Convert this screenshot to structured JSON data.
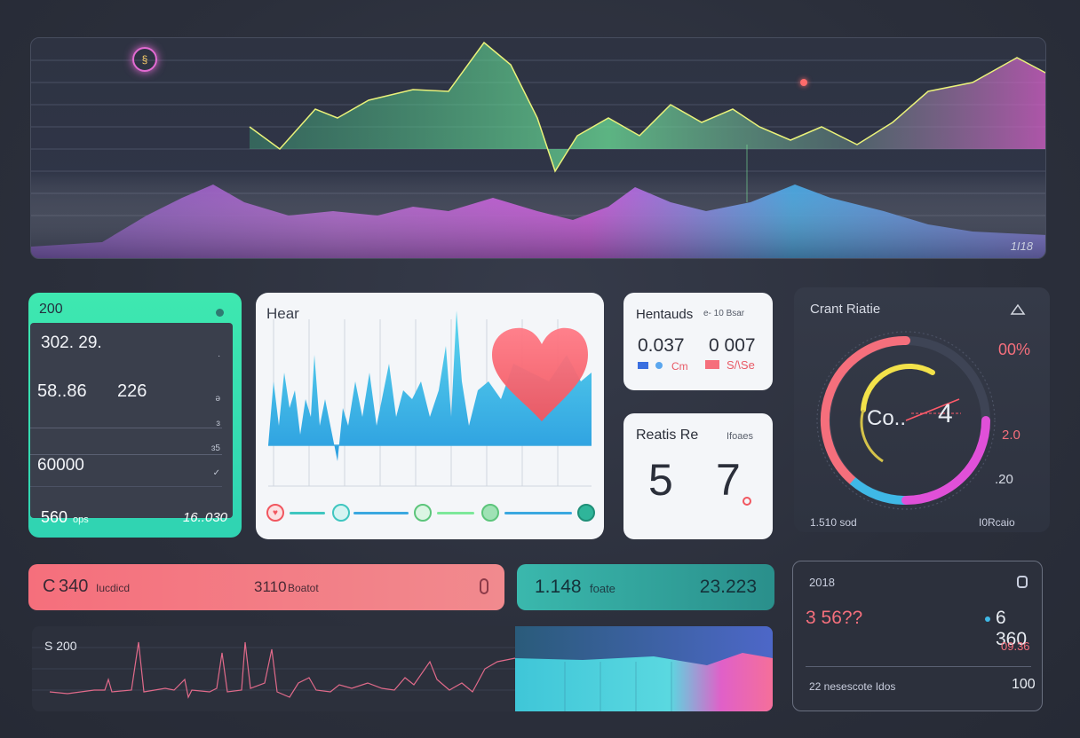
{
  "top_panel": {
    "corner_value": "1I18",
    "ring_icon_glyph": "§"
  },
  "left_card": {
    "header_value": "200",
    "row1": "302. 29.",
    "row2_a": "58..86",
    "row2_b": "226",
    "row3": "60000",
    "small_mark_1": ".",
    "small_mark_2": "ə",
    "small_mark_3": "ɜ",
    "small_mark_4": "ɜ5",
    "small_mark_5": "✓",
    "footer_value": "560",
    "footer_unit": "ops",
    "footer_right": "16..030"
  },
  "heart_card": {
    "title": "Hear"
  },
  "hr_card": {
    "title": "Hentauds",
    "title_suffix": "e- 10 Bsar",
    "value_a": "0.037",
    "value_b": "0 007",
    "legend_a": "Cm",
    "legend_b": "S/\\Se"
  },
  "rr_card": {
    "title": "Reatis Re",
    "subtitle": "Ifoaes",
    "value_a": "5",
    "value_b": "7"
  },
  "gauge_card": {
    "title": "Crant Riatie",
    "percent": "00%",
    "center_text": "Co..",
    "center_num": "4",
    "side_value_1": "2.0",
    "side_value_2": ".20",
    "footer_left": "1.510 sod",
    "footer_right": "I0Rcaio"
  },
  "red_bar": {
    "left_value": "340",
    "left_prefix": "C",
    "left_label": "Iucdicd",
    "mid_value": "3110",
    "mid_label": "Boatot"
  },
  "teal_bar": {
    "left_value": "1.148",
    "left_label": "foate",
    "right_value": "23.223"
  },
  "ekg_panel": {
    "label": "S 200"
  },
  "stat_card": {
    "top_value": "2018",
    "left_value": "3 56??",
    "right_value": "6 360",
    "sub_value": "09.36",
    "footer_left": "22 nesescote Idos",
    "footer_right": "100"
  },
  "colors": {
    "teal": "#3ee8b0",
    "coral": "#f56f7c",
    "pink": "#e46bd3",
    "blue": "#3fb8e6",
    "green": "#7de89a"
  }
}
